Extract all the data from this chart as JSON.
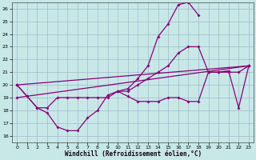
{
  "xlabel": "Windchill (Refroidissement éolien,°C)",
  "bg_color": "#c8e8e8",
  "grid_color": "#a0b8c8",
  "line_color": "#880077",
  "xlim": [
    -0.5,
    23.5
  ],
  "ylim": [
    15.5,
    26.5
  ],
  "x_ticks": [
    0,
    1,
    2,
    3,
    4,
    5,
    6,
    7,
    8,
    9,
    10,
    11,
    12,
    13,
    14,
    15,
    16,
    17,
    18,
    19,
    20,
    21,
    22,
    23
  ],
  "y_ticks": [
    16,
    17,
    18,
    19,
    20,
    21,
    22,
    23,
    24,
    25,
    26
  ],
  "curves": [
    {
      "x": [
        0,
        1,
        2,
        3,
        4,
        5,
        6,
        7,
        8,
        9,
        10,
        11,
        12,
        13,
        14,
        15,
        16,
        17,
        18,
        19,
        20,
        21
      ],
      "y": [
        20.0,
        19.1,
        18.2,
        17.8,
        16.7,
        16.4,
        16.4,
        17.4,
        18.0,
        19.2,
        19.5,
        19.1,
        18.7,
        18.7,
        18.7,
        19.0,
        19.0,
        18.7,
        18.7,
        21.0,
        21.0,
        21.1
      ]
    },
    {
      "x": [
        0,
        1,
        2,
        3,
        4,
        5,
        6,
        7,
        8,
        9,
        10,
        11,
        12,
        13,
        14,
        15,
        16,
        17,
        18,
        19,
        20,
        21,
        22,
        23
      ],
      "y": [
        20.0,
        19.1,
        18.2,
        18.2,
        19.0,
        19.0,
        19.0,
        19.0,
        19.0,
        19.0,
        19.5,
        19.5,
        20.0,
        20.5,
        21.0,
        21.5,
        22.5,
        23.0,
        23.0,
        21.0,
        21.0,
        21.0,
        21.0,
        21.5
      ]
    },
    {
      "x": [
        10,
        11,
        12,
        13,
        14,
        15,
        16,
        17,
        18
      ],
      "y": [
        19.5,
        19.7,
        20.5,
        21.5,
        23.8,
        24.8,
        26.3,
        26.5,
        25.5
      ]
    },
    {
      "x": [
        0,
        23
      ],
      "y": [
        20.0,
        21.5
      ]
    },
    {
      "x": [
        0,
        23
      ],
      "y": [
        19.0,
        21.5
      ]
    },
    {
      "x": [
        20,
        21,
        22,
        23
      ],
      "y": [
        21.0,
        21.1,
        18.2,
        21.5
      ]
    }
  ]
}
